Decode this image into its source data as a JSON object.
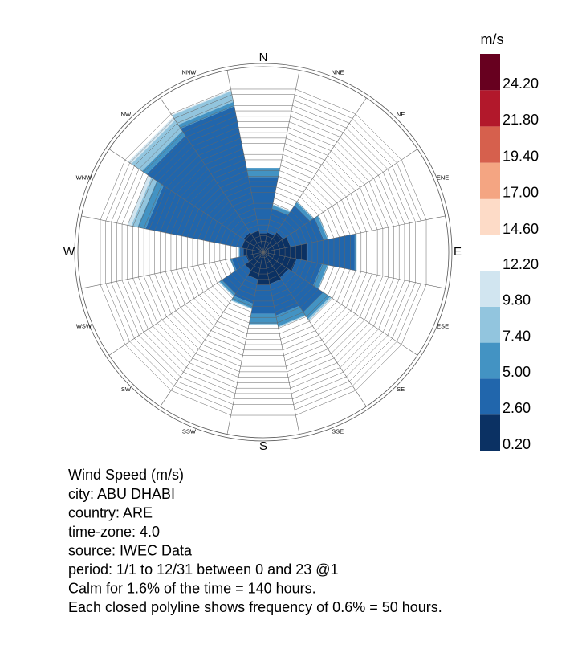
{
  "chart_data": {
    "type": "windrose",
    "directions": [
      "N",
      "NNE",
      "NE",
      "ENE",
      "E",
      "ESE",
      "SE",
      "SSE",
      "S",
      "SSW",
      "SW",
      "WSW",
      "W",
      "WNW",
      "NW",
      "NNW"
    ],
    "rlim": [
      0,
      18
    ],
    "rticks": [
      0.6,
      1.2,
      1.8,
      2.4,
      3.0,
      3.6,
      4.2,
      4.8,
      5.4,
      6.0,
      6.6,
      7.2,
      7.8,
      8.4,
      9.0,
      9.6,
      10.2,
      10.8,
      11.4,
      12.0,
      12.6,
      13.2,
      13.8,
      14.4,
      15.0,
      15.6,
      16.2,
      16.8,
      17.4,
      18.0
    ],
    "series": [
      {
        "color": "#0b3163",
        "values": [
          2.1,
          2.2,
          2.6,
          3.0,
          4.9,
          3.7,
          3.3,
          3.5,
          3.6,
          3.0,
          2.4,
          1.9,
          2.2,
          2.4,
          2.6,
          2.4
        ]
      },
      {
        "color": "#2166ac",
        "values": [
          6.2,
          2.6,
          3.5,
          3.7,
          5.2,
          2.8,
          4.5,
          3.5,
          3.2,
          2.7,
          3.0,
          1.6,
          0.4,
          10.6,
          12.6,
          13.7
        ]
      },
      {
        "color": "#4393c3",
        "values": [
          1.0,
          0.4,
          0.4,
          0.4,
          0.2,
          0.6,
          0.9,
          1.2,
          1.1,
          0.5,
          0.3,
          0.2,
          0.1,
          0.9,
          0.6,
          0.5
        ]
      },
      {
        "color": "#92c5de",
        "values": [
          0,
          0.1,
          0.1,
          0.1,
          0,
          0.1,
          0.2,
          0.1,
          0.1,
          0.1,
          0.1,
          0,
          0,
          0.7,
          1.4,
          1.2
        ]
      },
      {
        "color": "#d1e5f0",
        "values": [
          0,
          0,
          0,
          0,
          0,
          0,
          0,
          0,
          0,
          0,
          0,
          0,
          0,
          0.4,
          0.4,
          0.1
        ]
      }
    ],
    "colorbars": [
      {
        "title": "m/s",
        "lim": [
          14.6,
          26.6
        ],
        "ticks": [
          {
            "value": 14.6,
            "label": "14.60"
          },
          {
            "value": 17.0,
            "label": "17.00"
          },
          {
            "value": 19.4,
            "label": "19.40"
          },
          {
            "value": 21.8,
            "label": "21.80"
          },
          {
            "value": 24.2,
            "label": "24.20"
          }
        ],
        "colors": [
          "#fddbc7",
          "#f4a582",
          "#d6604d",
          "#b2182b",
          "#67001f"
        ]
      },
      {
        "lim": [
          0.2,
          12.2
        ],
        "ticks": [
          {
            "value": 0.2,
            "label": "0.20"
          },
          {
            "value": 2.6,
            "label": "2.60"
          },
          {
            "value": 5.0,
            "label": "5.00"
          },
          {
            "value": 7.4,
            "label": "7.40"
          },
          {
            "value": 9.8,
            "label": "9.80"
          },
          {
            "value": 12.2,
            "label": "12.20"
          }
        ],
        "colors": [
          "#0b3163",
          "#2166ac",
          "#4393c3",
          "#92c5de",
          "#d1e5f0"
        ]
      }
    ],
    "title": "Wind Speed (m/s)",
    "caption": [
      "city: ABU DHABI",
      "country: ARE",
      "time-zone: 4.0",
      "source: IWEC Data",
      "period: 1/1 to 12/31 between 0 and 23 @1",
      "Calm for 1.6% of the time = 140 hours.",
      "Each closed polyline shows frequency of 0.6% = 50 hours."
    ]
  }
}
